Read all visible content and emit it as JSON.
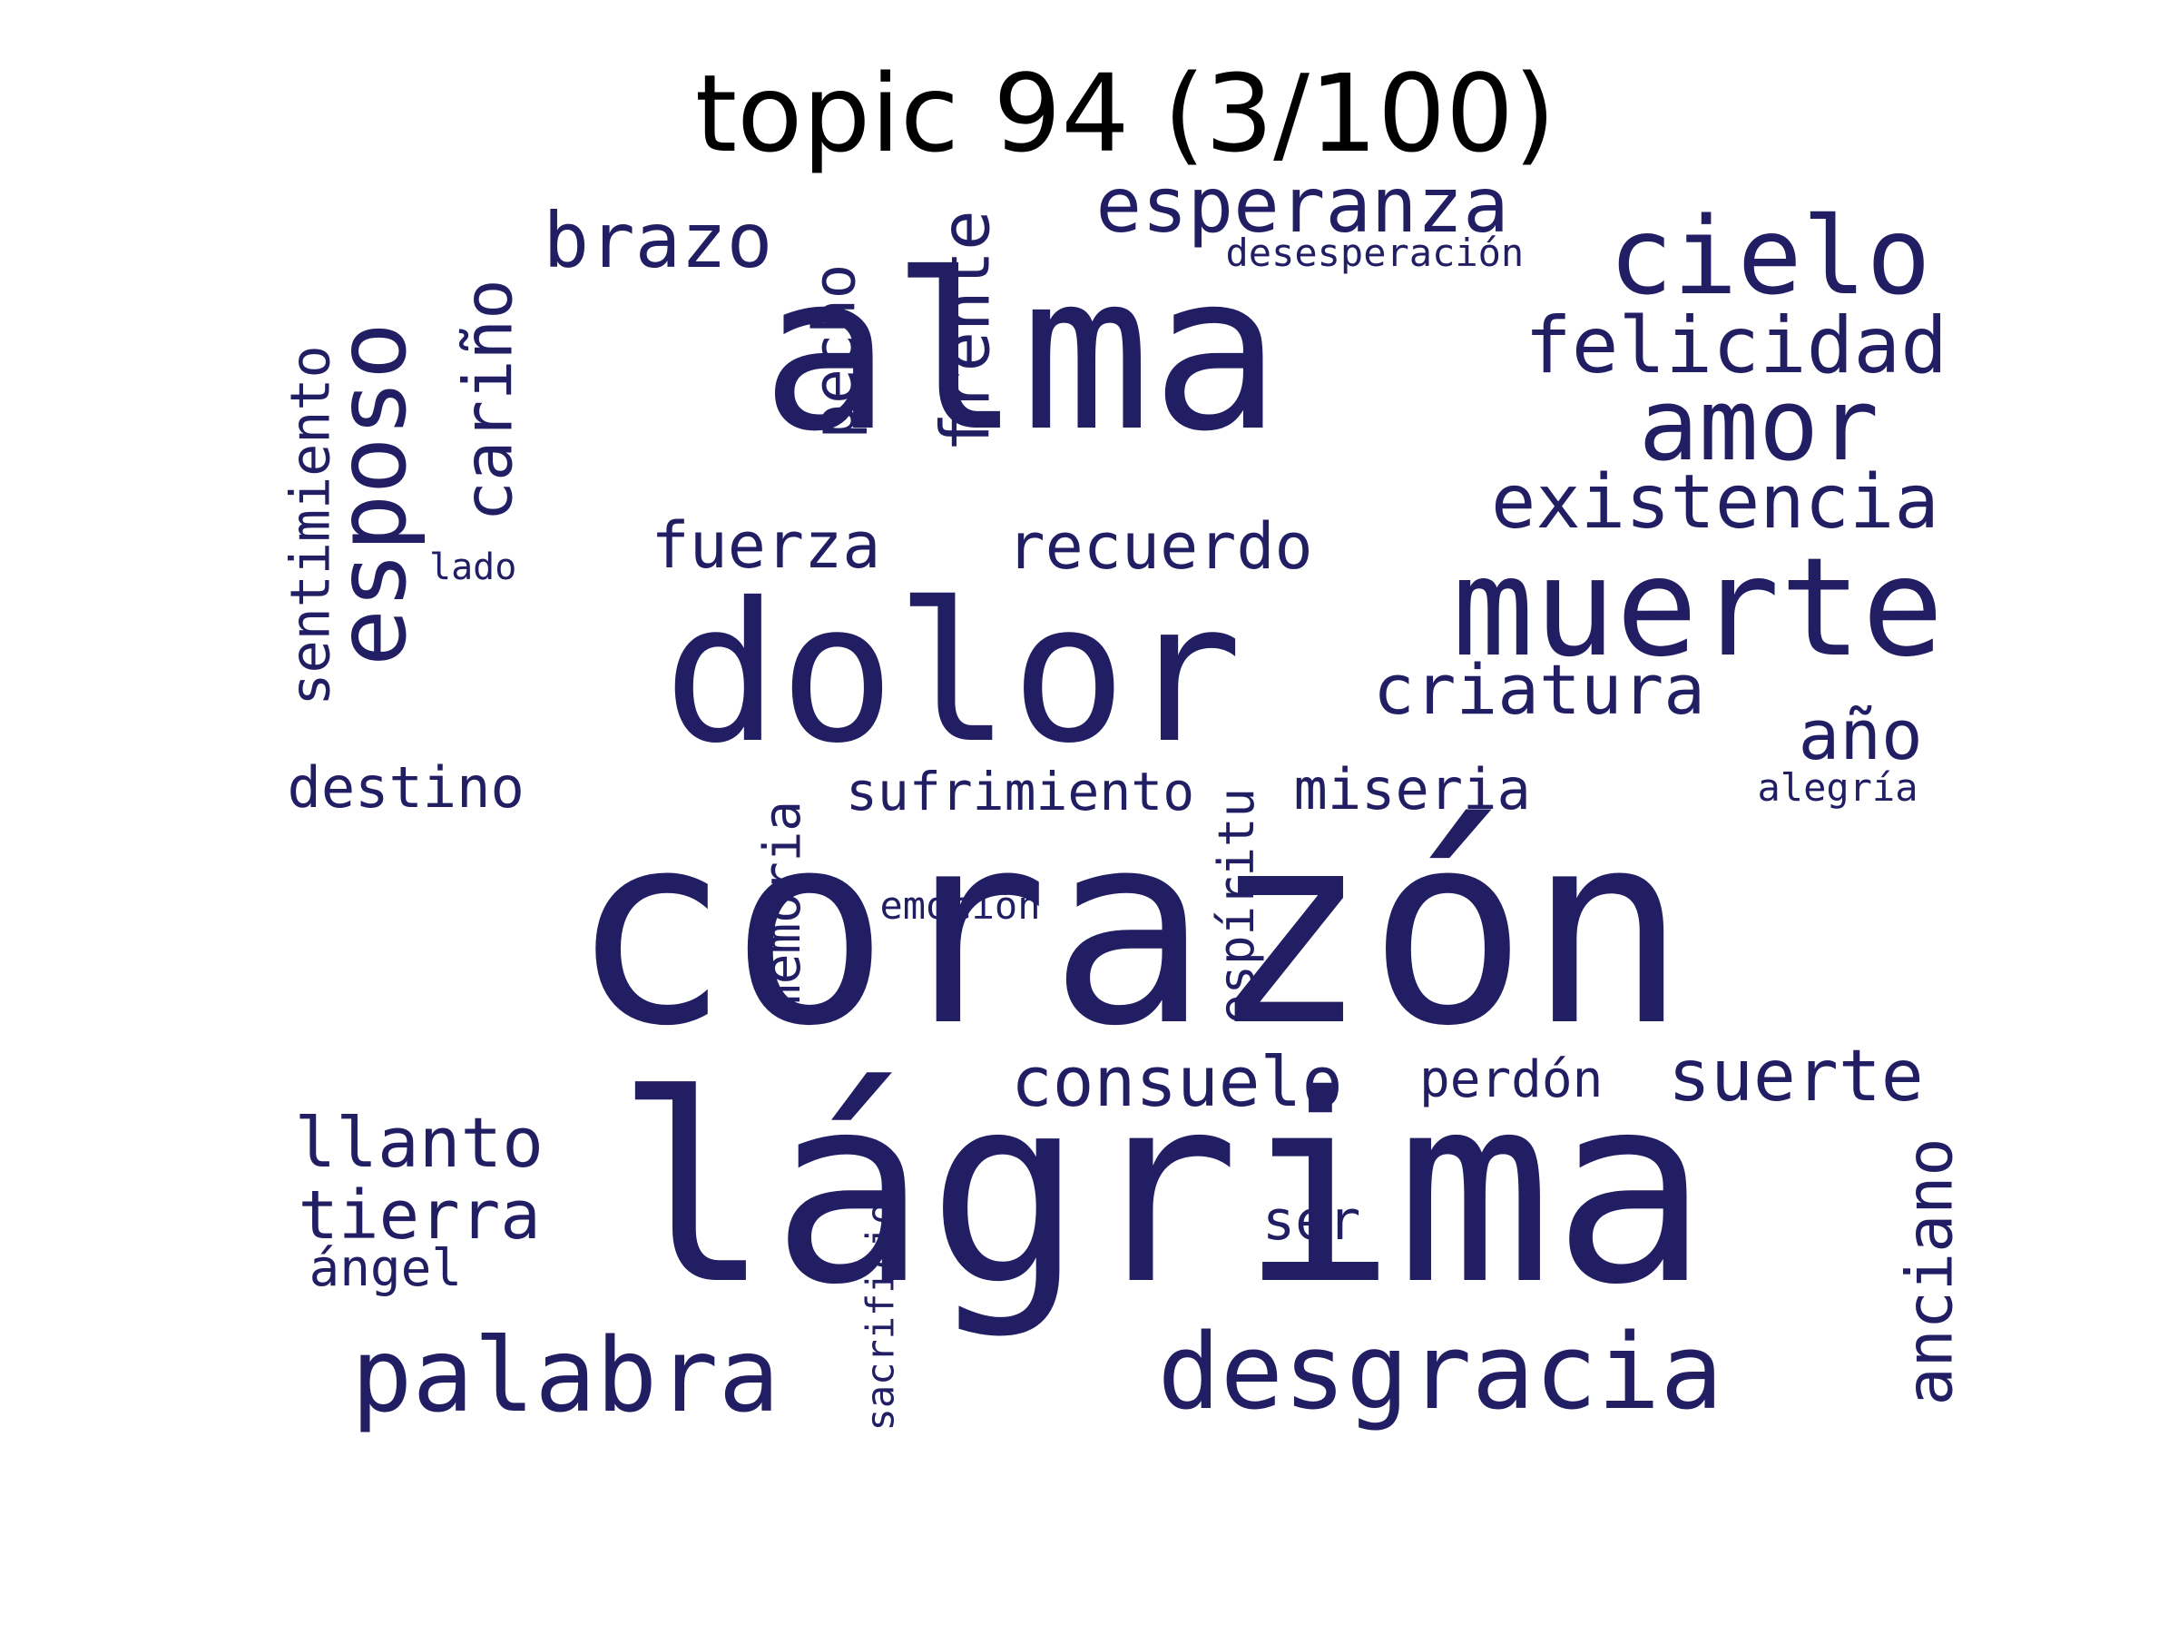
{
  "title": "topic 94 (3/100)",
  "word_color": "#221e64",
  "title_color": "#000000",
  "words": [
    {
      "text": "corazón"
    },
    {
      "text": "lágrima"
    },
    {
      "text": "alma"
    },
    {
      "text": "dolor"
    },
    {
      "text": "muerte"
    },
    {
      "text": "desgracia"
    },
    {
      "text": "cielo"
    },
    {
      "text": "amor"
    },
    {
      "text": "palabra"
    },
    {
      "text": "esperanza"
    },
    {
      "text": "felicidad"
    },
    {
      "text": "existencia"
    },
    {
      "text": "esposo",
      "vertical": true
    },
    {
      "text": "criatura"
    },
    {
      "text": "brazo"
    },
    {
      "text": "cariño",
      "vertical": true
    },
    {
      "text": "frente",
      "vertical": true
    },
    {
      "text": "recuerdo"
    },
    {
      "text": "fuerza"
    },
    {
      "text": "año"
    },
    {
      "text": "suerte"
    },
    {
      "text": "consuelo"
    },
    {
      "text": "llanto"
    },
    {
      "text": "tierra"
    },
    {
      "text": "anciano",
      "vertical": true
    },
    {
      "text": "pecho",
      "vertical": true
    },
    {
      "text": "miseria"
    },
    {
      "text": "sufrimiento"
    },
    {
      "text": "destino"
    },
    {
      "text": "sentimiento",
      "vertical": true
    },
    {
      "text": "memoria",
      "vertical": true
    },
    {
      "text": "espíritu",
      "vertical": true
    },
    {
      "text": "ser"
    },
    {
      "text": "perdón"
    },
    {
      "text": "ángel"
    },
    {
      "text": "desesperación"
    },
    {
      "text": "alegría"
    },
    {
      "text": "emoción"
    },
    {
      "text": "lado"
    },
    {
      "text": "sacrificio",
      "vertical": true
    }
  ]
}
